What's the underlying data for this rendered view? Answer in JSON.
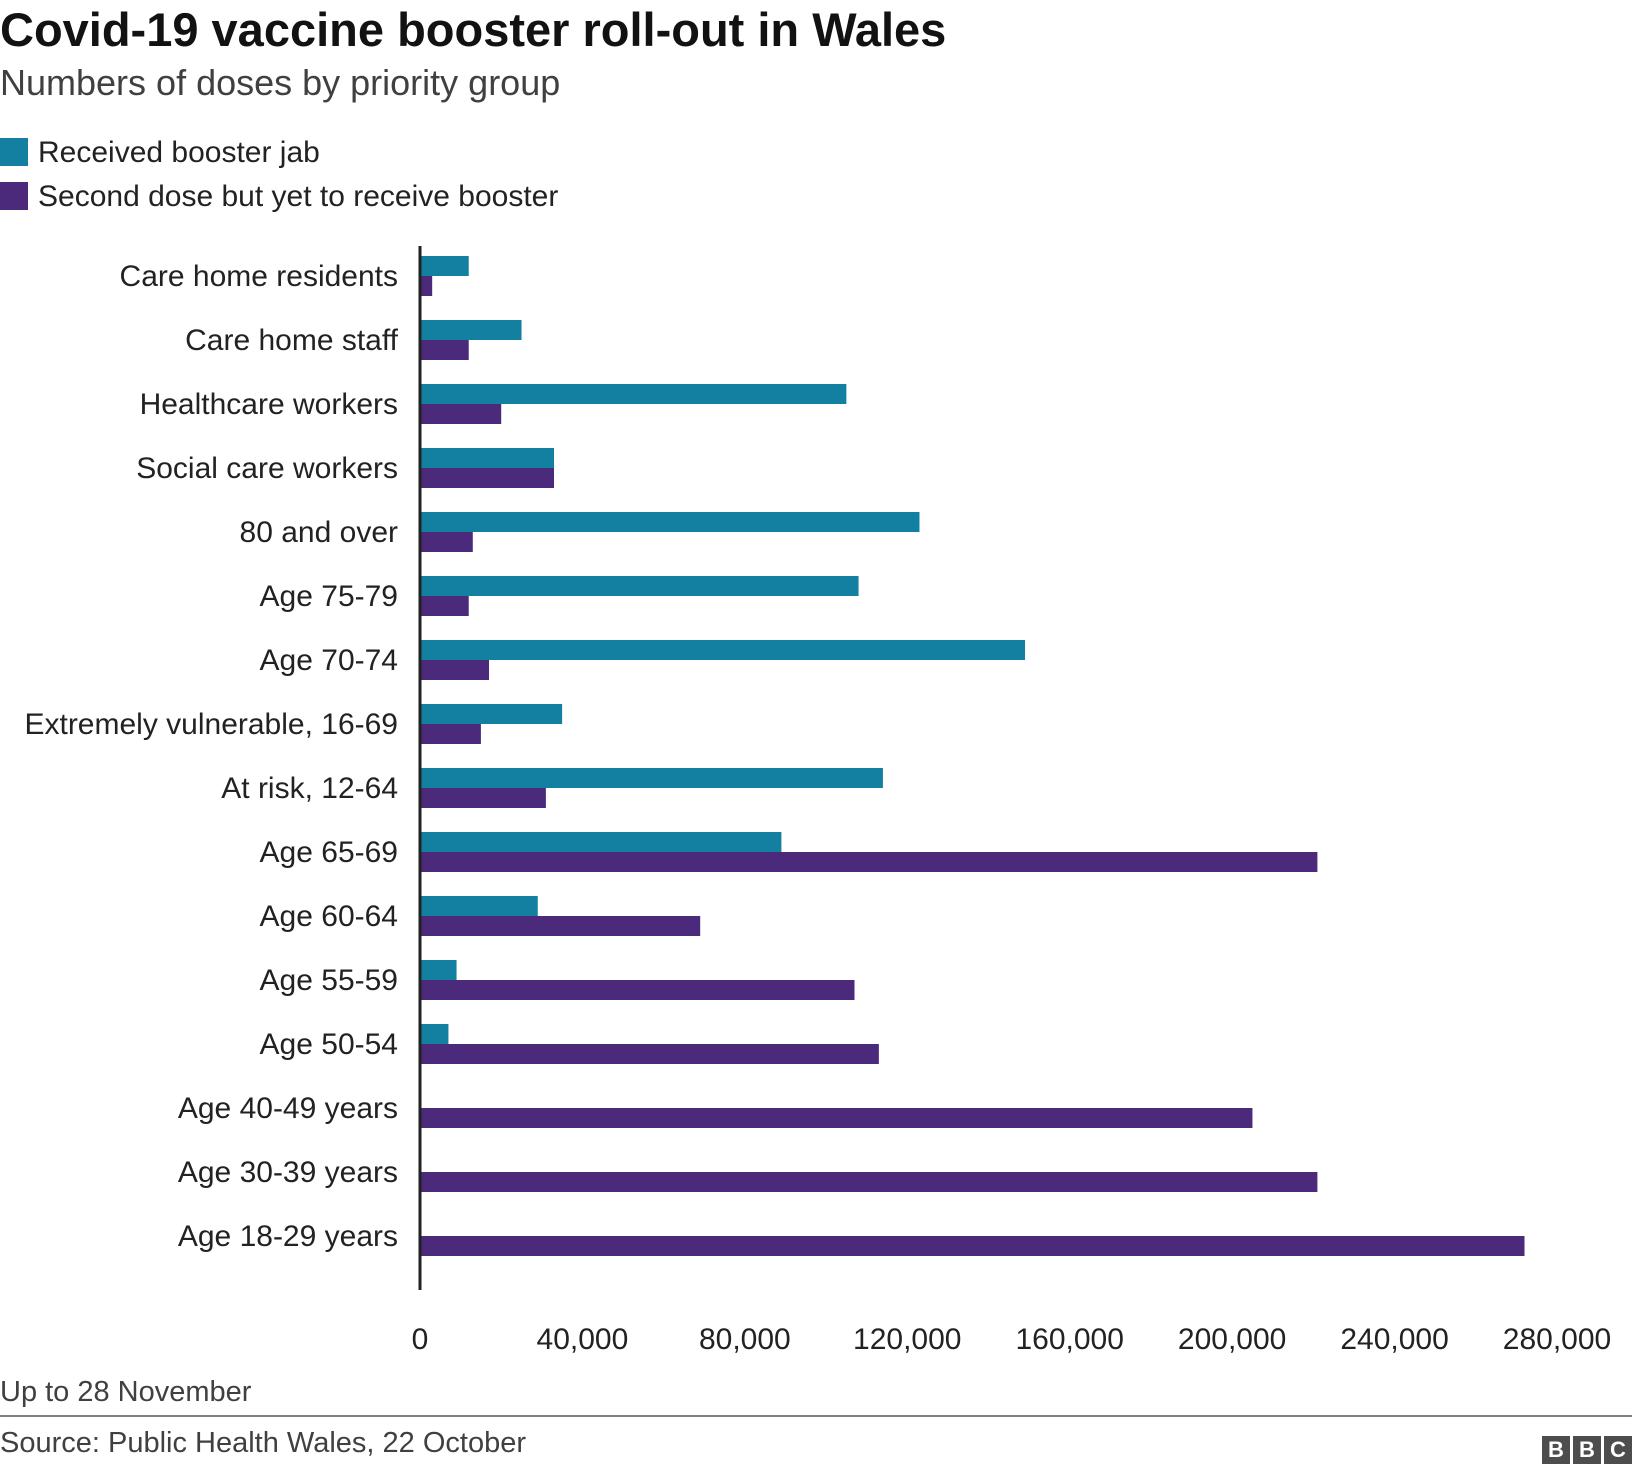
{
  "chart_data": {
    "type": "bar",
    "orientation": "horizontal",
    "title": "Covid-19 vaccine booster roll-out in Wales",
    "subtitle": "Numbers of doses by priority group",
    "categories": [
      "Care home residents",
      "Care home staff",
      "Healthcare workers",
      "Social care workers",
      "80 and over",
      "Age 75-79",
      "Age 70-74",
      "Extremely vulnerable, 16-69",
      "At risk, 12-64",
      "Age 65-69",
      "Age 60-64",
      "Age 55-59",
      "Age 50-54",
      "Age 40-49 years",
      "Age 30-39 years",
      "Age 18-29 years"
    ],
    "series": [
      {
        "name": "Received booster jab",
        "color": "#1380a1",
        "values": [
          12000,
          25000,
          105000,
          33000,
          123000,
          108000,
          149000,
          35000,
          114000,
          89000,
          29000,
          9000,
          7000,
          0,
          0,
          0
        ]
      },
      {
        "name": "Second dose but yet to receive booster",
        "color": "#4b2a7c",
        "values": [
          3000,
          12000,
          20000,
          33000,
          13000,
          12000,
          17000,
          15000,
          31000,
          221000,
          69000,
          107000,
          113000,
          205000,
          221000,
          272000
        ]
      }
    ],
    "xlim": [
      0,
      280000
    ],
    "xticks": [
      0,
      40000,
      80000,
      120000,
      160000,
      200000,
      240000,
      280000
    ],
    "xtick_labels": [
      "0",
      "40,000",
      "80,000",
      "120,000",
      "160,000",
      "200,000",
      "240,000",
      "280,000"
    ],
    "grid": false,
    "legend_position": "top-left"
  },
  "footer": {
    "note": "Up to 28 November",
    "source": "Source: Public Health Wales, 22 October",
    "logo_letters": [
      "B",
      "B",
      "C"
    ]
  }
}
